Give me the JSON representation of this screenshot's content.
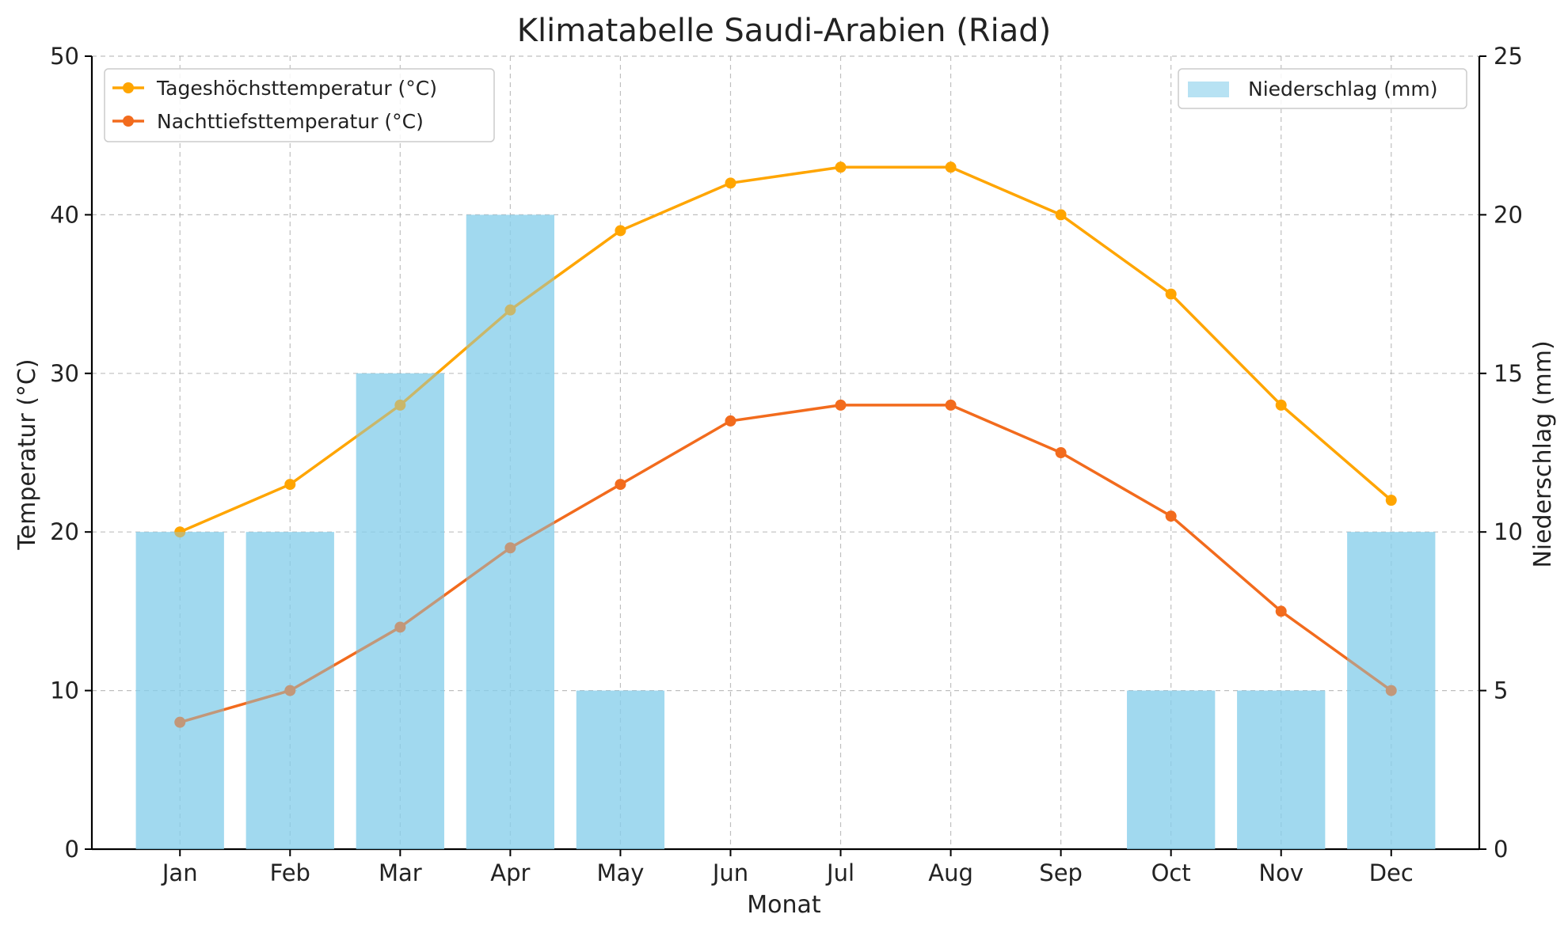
{
  "chart_data": {
    "type": "bar+line",
    "title": "Klimatabelle Saudi-Arabien (Riad)",
    "xlabel": "Monat",
    "ylabel_left": "Temperatur (°C)",
    "ylabel_right": "Niederschlag (mm)",
    "categories": [
      "Jan",
      "Feb",
      "Mar",
      "Apr",
      "May",
      "Jun",
      "Jul",
      "Aug",
      "Sep",
      "Oct",
      "Nov",
      "Dec"
    ],
    "ylim_left": [
      0,
      50
    ],
    "ylim_right": [
      0,
      25
    ],
    "yticks_left": [
      0,
      10,
      20,
      30,
      40,
      50
    ],
    "yticks_right": [
      0,
      5,
      10,
      15,
      20,
      25
    ],
    "grid": true,
    "bars": {
      "name": "Niederschlag (mm)",
      "axis": "right",
      "color": "#87CEEB",
      "opacity": 0.6,
      "values": [
        10,
        10,
        15,
        20,
        5,
        0,
        0,
        0,
        0,
        5,
        5,
        10
      ],
      "legend_position": "top-right"
    },
    "series": [
      {
        "name": "Tageshöchsttemperatur (°C)",
        "axis": "left",
        "color": "#FFA500",
        "values": [
          20,
          23,
          28,
          34,
          39,
          42,
          43,
          43,
          40,
          35,
          28,
          22
        ]
      },
      {
        "name": "Nachttiefsttemperatur (°C)",
        "axis": "left",
        "color": "#F26B1D",
        "values": [
          8,
          10,
          14,
          19,
          23,
          27,
          28,
          28,
          25,
          21,
          15,
          10
        ]
      }
    ],
    "line_legend_position": "top-left"
  }
}
